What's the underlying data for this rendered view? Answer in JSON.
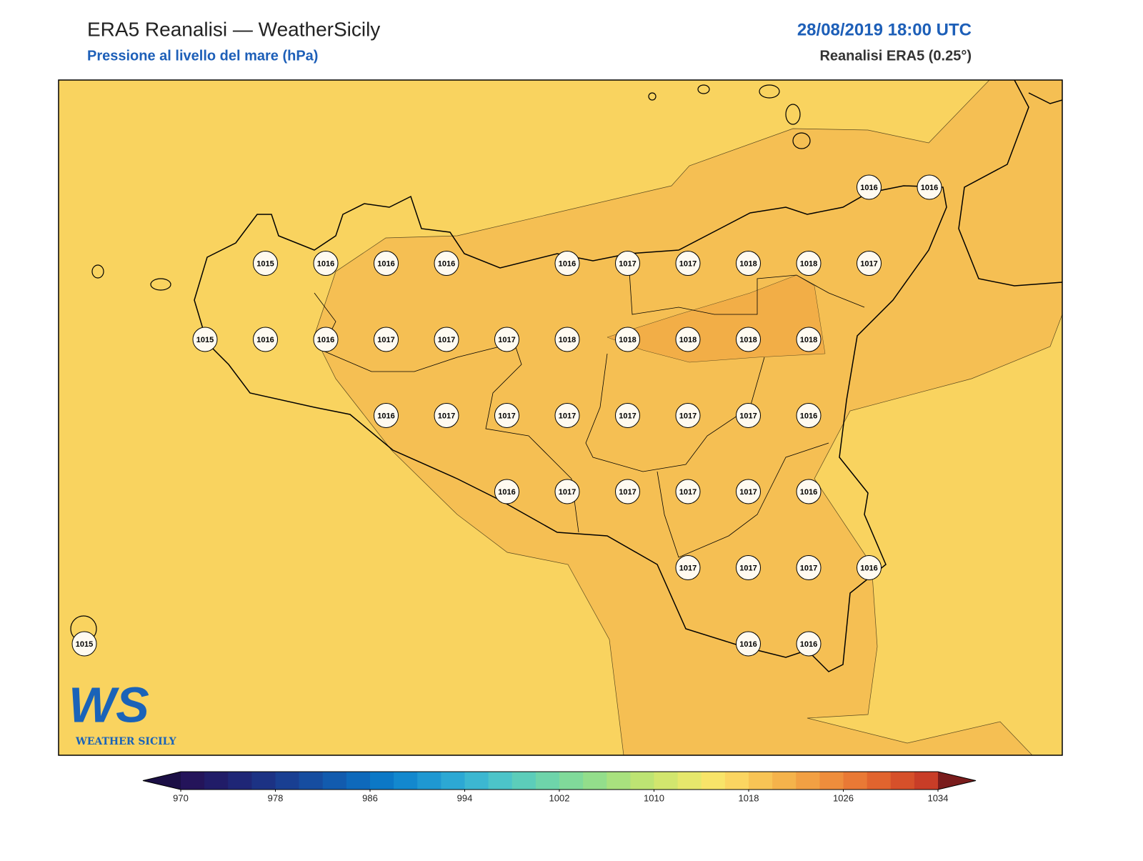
{
  "header": {
    "title": "ERA5 Reanalisi — WeatherSicily",
    "subtitle": "Pressione al livello del mare (hPa)",
    "datetime": "28/08/2019 18:00 UTC",
    "source": "Reanalisi ERA5 (0.25°)"
  },
  "stations": {
    "grid": [
      [
        null,
        null,
        null,
        null,
        null,
        null,
        null,
        null,
        null,
        null,
        null,
        null,
        null,
        1016,
        1016
      ],
      [
        null,
        null,
        null,
        1015,
        1016,
        1016,
        1016,
        null,
        1016,
        1017,
        1017,
        1018,
        1018,
        1017,
        null
      ],
      [
        null,
        null,
        1015,
        1016,
        1016,
        1017,
        1017,
        1017,
        1018,
        1018,
        1018,
        1018,
        1018,
        null,
        null
      ],
      [
        null,
        null,
        null,
        null,
        null,
        1016,
        1017,
        1017,
        1017,
        1017,
        1017,
        1017,
        1016,
        null,
        null
      ],
      [
        null,
        null,
        null,
        null,
        null,
        null,
        null,
        1016,
        1017,
        1017,
        1017,
        1017,
        1016,
        null,
        null
      ],
      [
        null,
        null,
        null,
        null,
        null,
        null,
        null,
        null,
        null,
        null,
        1017,
        1017,
        1017,
        1016,
        null
      ],
      [
        1015,
        null,
        null,
        null,
        null,
        null,
        null,
        null,
        null,
        null,
        null,
        1016,
        1016,
        null,
        null
      ]
    ]
  },
  "colorbar": {
    "lim": [
      970,
      1034
    ],
    "ticks": [
      970,
      978,
      986,
      994,
      1002,
      1010,
      1018,
      1026,
      1034
    ],
    "colors": [
      "#24145a",
      "#211c68",
      "#1f2676",
      "#1c3284",
      "#193f92",
      "#164da0",
      "#125bae",
      "#0e69bb",
      "#0c78c6",
      "#1388ce",
      "#1f98d2",
      "#2ca8d4",
      "#3cb7d1",
      "#4cc4c9",
      "#5ccdba",
      "#6ed4aa",
      "#80da9a",
      "#93de8b",
      "#a8e17e",
      "#bde473",
      "#d2e66e",
      "#e6e86c",
      "#f8e469",
      "#fbd561",
      "#f8c455",
      "#f5b34b",
      "#f2a043",
      "#ee8d3c",
      "#e97935",
      "#e1642e",
      "#d6502a",
      "#c83d27"
    ],
    "under_color": "#1b0f45",
    "over_color": "#7a1c1c"
  },
  "logo": {
    "mark": "WS",
    "text": "WEATHER SICILY"
  }
}
